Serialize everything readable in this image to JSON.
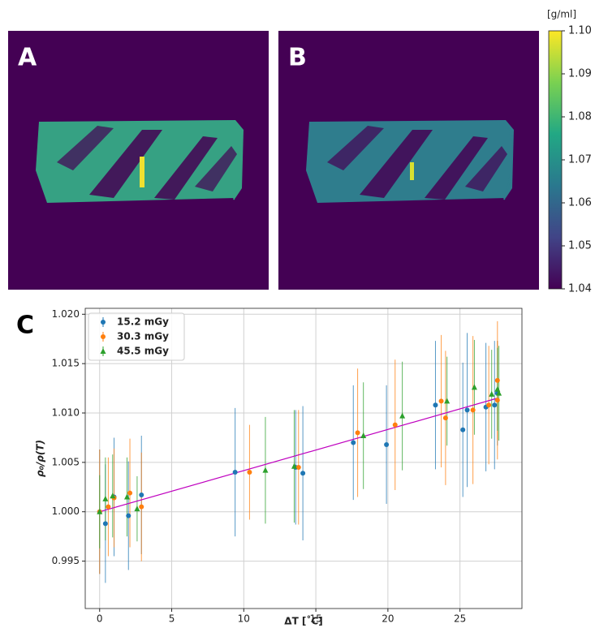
{
  "panels": [
    {
      "label": "A"
    },
    {
      "label": "B"
    },
    {
      "label": "C"
    }
  ],
  "chart_data": [
    {
      "type": "colorbar",
      "title": "[g/ml]",
      "colors": [
        "#440154",
        "#414487",
        "#2a788e",
        "#22a884",
        "#7ad151",
        "#fde725"
      ],
      "ylim": [
        1.04,
        1.1
      ],
      "yticks": [
        {
          "value": 1.04,
          "label": "1.04"
        },
        {
          "value": 1.05,
          "label": "1.05"
        },
        {
          "value": 1.06,
          "label": "1.06"
        },
        {
          "value": 1.07,
          "label": "1.07"
        },
        {
          "value": 1.08,
          "label": "1.08"
        },
        {
          "value": 1.09,
          "label": "1.09"
        },
        {
          "value": 1.1,
          "label": "1.10"
        }
      ]
    },
    {
      "type": "errorbar",
      "xlabel": "ΔT [˚C]",
      "ylabel": "ρ₀/ρ(T)",
      "xlim": [
        -1,
        29.3
      ],
      "ylim": [
        0.9902,
        1.0206
      ],
      "xticks": [
        0,
        5,
        10,
        15,
        20,
        25
      ],
      "yticks": [
        0.995,
        {
          "value": 1,
          "label": "1.000"
        },
        1.005,
        {
          "value": 1.01,
          "label": "1.010"
        },
        1.015,
        {
          "value": 1.02,
          "label": "1.020"
        }
      ],
      "grid": true,
      "legend": "upper left",
      "series": [
        {
          "name": "15.2 mGy",
          "color": "#1f77b4",
          "marker": "circle",
          "x": [
            0,
            0.4,
            1.0,
            2.0,
            2.9,
            9.4,
            13.6,
            14.1,
            17.6,
            19.9,
            23.3,
            25.2,
            25.5,
            26.8,
            27.4,
            27.6
          ],
          "values": [
            1.0,
            0.9988,
            1.0015,
            0.9996,
            1.0017,
            1.004,
            1.0045,
            1.0039,
            1.007,
            1.0068,
            1.0108,
            1.0083,
            1.0103,
            1.0106,
            1.0108,
            1.012
          ],
          "errors": [
            0.0063,
            0.006,
            0.006,
            0.0055,
            0.006,
            0.0065,
            0.0058,
            0.0068,
            0.0058,
            0.006,
            0.0065,
            0.0068,
            0.0078,
            0.0065,
            0.0065,
            0.0053
          ]
        },
        {
          "name": "30.3 mGy",
          "color": "#ff7f0e",
          "marker": "circle",
          "x": [
            0,
            0.6,
            1.0,
            2.1,
            2.9,
            10.4,
            13.8,
            17.9,
            20.5,
            23.7,
            24.0,
            25.9,
            27.0,
            27.6,
            27.6
          ],
          "values": [
            1.0,
            1.0005,
            1.0014,
            1.0019,
            1.0005,
            1.004,
            1.0045,
            1.008,
            1.0088,
            1.0112,
            1.0095,
            1.0103,
            1.0108,
            1.0133,
            1.0113
          ],
          "errors": [
            0.0063,
            0.005,
            0.005,
            0.0055,
            0.0055,
            0.0048,
            0.0058,
            0.0065,
            0.0066,
            0.0067,
            0.0068,
            0.0075,
            0.006,
            0.006,
            0.006
          ]
        },
        {
          "name": "45.5 mGy",
          "color": "#2ca02c",
          "marker": "triangle",
          "x": [
            0,
            0.4,
            0.9,
            1.9,
            2.6,
            11.5,
            13.5,
            18.3,
            21.0,
            24.1,
            26.0,
            27.2,
            27.6,
            27.7
          ],
          "values": [
            1.0,
            1.0013,
            1.0016,
            1.0015,
            1.0003,
            1.0042,
            1.0046,
            1.0077,
            1.0097,
            1.0112,
            1.0126,
            1.0119,
            1.0124,
            1.012
          ],
          "errors": [
            0.0037,
            0.0042,
            0.0042,
            0.004,
            0.0033,
            0.0054,
            0.0057,
            0.0054,
            0.0055,
            0.0045,
            0.0048,
            0.0045,
            0.0042,
            0.0048
          ]
        }
      ],
      "fit": {
        "color": "#bf00bf",
        "x": [
          0,
          27.6
        ],
        "values": [
          1.0,
          1.0115
        ]
      }
    }
  ]
}
